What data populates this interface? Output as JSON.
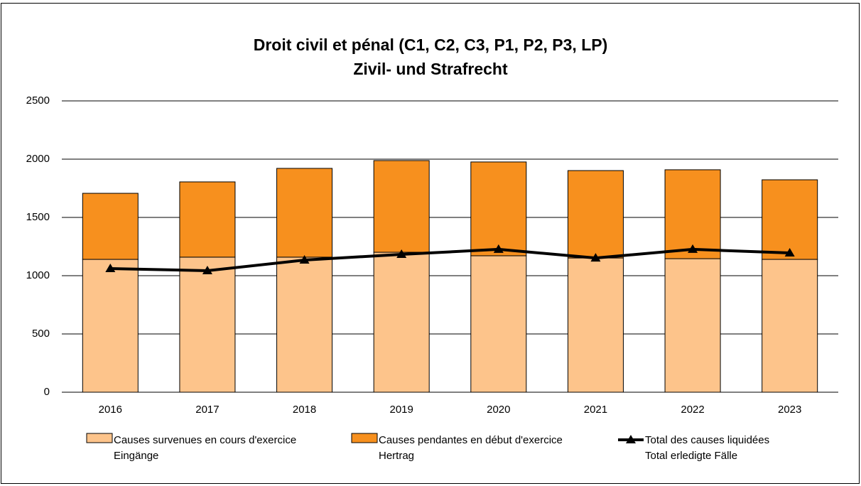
{
  "chart_data": {
    "type": "bar",
    "title": "Droit civil et pénal (C1, C2, C3, P1, P2, P3, LP)\nZivil- und Strafrecht",
    "categories": [
      "2016",
      "2017",
      "2018",
      "2019",
      "2020",
      "2021",
      "2022",
      "2023"
    ],
    "stacked": true,
    "series": [
      {
        "name": "Causes survenues en cours d'exercice\nEingänge",
        "color": "#fdc48b",
        "type": "bar",
        "values": [
          1140,
          1159,
          1159,
          1201,
          1171,
          1152,
          1146,
          1140
        ]
      },
      {
        "name": "Causes pendantes en début d'exercice\nHertrag",
        "color": "#f7901e",
        "type": "bar",
        "values": [
          567,
          646,
          762,
          787,
          805,
          750,
          763,
          683
        ]
      },
      {
        "name": "Total des causes liquidées\nTotal erledigte Fälle",
        "color": "#000000",
        "type": "line",
        "values": [
          1061,
          1043,
          1134,
          1183,
          1226,
          1152,
          1226,
          1195
        ]
      }
    ],
    "ylim": [
      0,
      2500
    ],
    "yticks": [
      0,
      500,
      1000,
      1500,
      2000,
      2500
    ],
    "grid": true,
    "legend": "bottom"
  }
}
